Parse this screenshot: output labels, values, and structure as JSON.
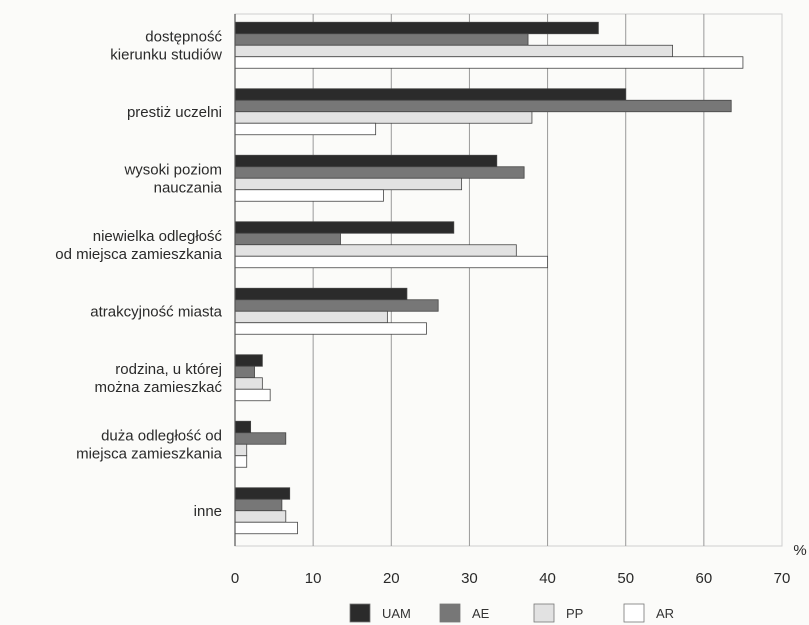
{
  "chart_data": {
    "type": "bar",
    "orientation": "horizontal",
    "categories": [
      [
        "dostępność",
        "kierunku studiów"
      ],
      [
        "prestiż uczelni"
      ],
      [
        "wysoki poziom",
        "nauczania"
      ],
      [
        "niewielka odległość",
        "od miejsca zamieszkania"
      ],
      [
        "atrakcyjność miasta"
      ],
      [
        "rodzina, u której",
        "można zamieszkać"
      ],
      [
        "duża odległość od",
        "miejsca zamieszkania"
      ],
      [
        "inne"
      ]
    ],
    "series": [
      {
        "name": "UAM",
        "color": "#2b2b2b",
        "values": [
          46.5,
          50,
          33.5,
          28,
          22,
          3.5,
          2,
          7
        ]
      },
      {
        "name": "AE",
        "color": "#777777",
        "values": [
          37.5,
          63.5,
          37,
          13.5,
          26,
          2.5,
          6.5,
          6
        ]
      },
      {
        "name": "PP",
        "color": "#e2e2e2",
        "values": [
          56,
          38,
          29,
          36,
          19.5,
          3.5,
          1.5,
          6.5
        ]
      },
      {
        "name": "AR",
        "color": "#ffffff",
        "values": [
          65,
          18,
          19,
          40,
          24.5,
          4.5,
          1.5,
          8
        ]
      }
    ],
    "xlim": [
      0,
      70
    ],
    "xticks": [
      0,
      10,
      20,
      30,
      40,
      50,
      60,
      70
    ],
    "xunit": "%",
    "grid": true,
    "legend_position": "bottom"
  }
}
